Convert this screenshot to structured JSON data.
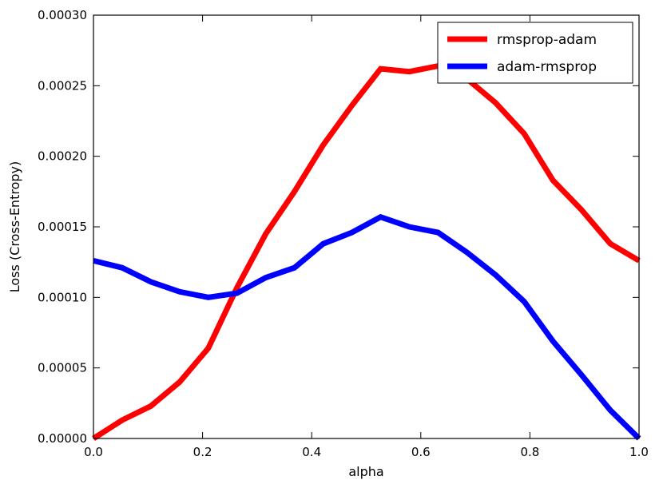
{
  "chart_data": {
    "type": "line",
    "xlabel": "alpha",
    "ylabel": "Loss (Cross-Entropy)",
    "xlim": [
      0.0,
      1.0
    ],
    "ylim": [
      0.0,
      0.0003
    ],
    "xticks": [
      "0.0",
      "0.2",
      "0.4",
      "0.6",
      "0.8",
      "1.0"
    ],
    "yticks": [
      "0.00000",
      "0.00005",
      "0.00010",
      "0.00015",
      "0.00020",
      "0.00025",
      "0.00030"
    ],
    "grid": false,
    "legend_position": "top-right",
    "x": [
      0.0,
      0.0526,
      0.1053,
      0.1579,
      0.2105,
      0.2632,
      0.3158,
      0.3684,
      0.4211,
      0.4737,
      0.5263,
      0.5789,
      0.6316,
      0.6842,
      0.7368,
      0.7895,
      0.8421,
      0.8947,
      0.9474,
      1.0
    ],
    "series": [
      {
        "name": "rmsprop-adam",
        "color": "#ff0000",
        "values": [
          0.0,
          1.3e-05,
          2.3e-05,
          4e-05,
          6.4e-05,
          0.000107,
          0.000145,
          0.000175,
          0.000208,
          0.000236,
          0.000262,
          0.00026,
          0.000264,
          0.000255,
          0.000238,
          0.000216,
          0.000183,
          0.000162,
          0.000138,
          0.000126
        ]
      },
      {
        "name": "adam-rmsprop",
        "color": "#0000ff",
        "values": [
          0.000126,
          0.000121,
          0.000111,
          0.000104,
          0.0001,
          0.000103,
          0.000114,
          0.000121,
          0.000138,
          0.000146,
          0.000157,
          0.00015,
          0.000146,
          0.000132,
          0.000116,
          9.7e-05,
          6.9e-05,
          4.5e-05,
          2e-05,
          0.0
        ]
      }
    ]
  }
}
